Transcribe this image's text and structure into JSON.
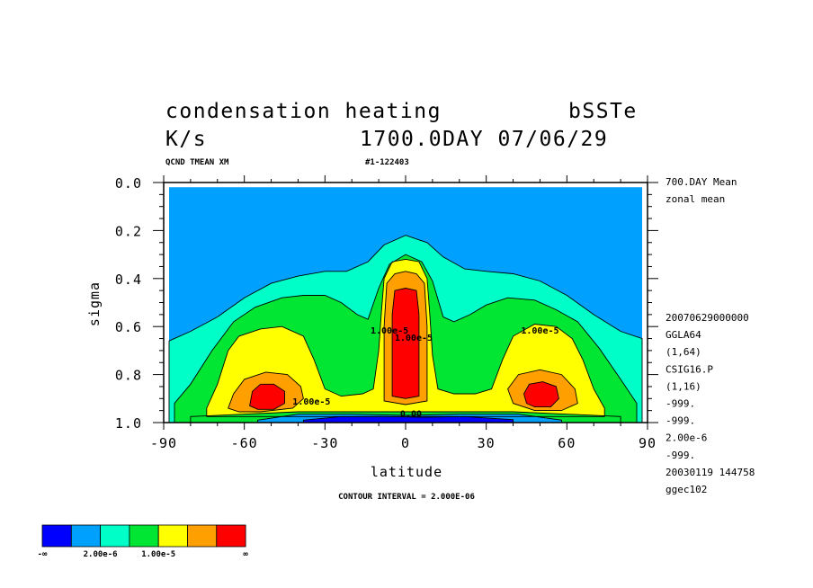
{
  "header": {
    "title_left": "condensation heating",
    "title_right": "bSSTe",
    "units": "K/s",
    "datestamp": "1700.0DAY 07/06/29",
    "varname": "QCND TMEAN XM",
    "run_id": "#1-122403"
  },
  "side_info": {
    "mean_label": "700.DAY Mean",
    "zonal_label": "zonal mean",
    "lines": [
      "20070629000000",
      "GGLA64",
      "(1,64)",
      "CSIG16.P",
      "(1,16)",
      "-999.",
      "-999.",
      "2.00e-6",
      "-999.",
      "20030119 144758",
      "ggec102"
    ]
  },
  "contour_interval": "CONTOUR INTERVAL = 2.000E-06",
  "colorbar": {
    "colors": [
      "#0000ff",
      "#00a0ff",
      "#00ffc8",
      "#00e632",
      "#ffff00",
      "#ffa000",
      "#ff0000"
    ],
    "labels": [
      "-∞",
      "2.00e-6",
      "1.00e-5",
      "∞"
    ]
  },
  "chart_data": {
    "type": "contour",
    "xlabel": "latitude",
    "ylabel": "sigma",
    "xlim": [
      -90,
      90
    ],
    "ylim": [
      0.0,
      1.0
    ],
    "y_inverted": true,
    "xticks": [
      -90,
      -60,
      -30,
      0,
      30,
      60,
      90
    ],
    "xtick_labels": [
      "-90",
      "-60",
      "-30",
      "0",
      "30",
      "60",
      "90"
    ],
    "yticks": [
      0.0,
      0.2,
      0.4,
      0.6,
      0.8,
      1.0
    ],
    "ytick_labels": [
      "0.0",
      "0.2",
      "0.4",
      "0.6",
      "0.8",
      "1.0"
    ],
    "contour_labels": [
      {
        "text": "1.00e-5",
        "x": -6,
        "y": 0.63
      },
      {
        "text": "1.00e-5",
        "x": 3,
        "y": 0.66
      },
      {
        "text": "1.00e-5",
        "x": 50,
        "y": 0.63
      },
      {
        "text": "1.00e-5",
        "x": -35,
        "y": 0.925
      },
      {
        "text": "0.00",
        "x": 2,
        "y": 0.975
      }
    ],
    "levels": [
      {
        "bin": 1,
        "color": "#00a0ff",
        "outline": [
          [
            -88,
            0.02
          ],
          [
            88,
            0.02
          ],
          [
            88,
            1.0
          ],
          [
            -88,
            1.0
          ]
        ]
      },
      {
        "bin": 2,
        "color": "#00ffc8",
        "outline": [
          [
            -88,
            0.66
          ],
          [
            -80,
            0.62
          ],
          [
            -70,
            0.56
          ],
          [
            -60,
            0.48
          ],
          [
            -50,
            0.42
          ],
          [
            -40,
            0.39
          ],
          [
            -30,
            0.37
          ],
          [
            -22,
            0.37
          ],
          [
            -14,
            0.33
          ],
          [
            -8,
            0.26
          ],
          [
            0,
            0.22
          ],
          [
            8,
            0.25
          ],
          [
            14,
            0.31
          ],
          [
            22,
            0.36
          ],
          [
            30,
            0.37
          ],
          [
            40,
            0.38
          ],
          [
            50,
            0.41
          ],
          [
            60,
            0.47
          ],
          [
            70,
            0.55
          ],
          [
            80,
            0.62
          ],
          [
            88,
            0.65
          ],
          [
            88,
            1.0
          ],
          [
            -88,
            1.0
          ]
        ]
      },
      {
        "bin": 3,
        "color": "#00e632",
        "outline": [
          [
            -86,
            0.92
          ],
          [
            -80,
            0.84
          ],
          [
            -72,
            0.7
          ],
          [
            -64,
            0.58
          ],
          [
            -56,
            0.52
          ],
          [
            -46,
            0.48
          ],
          [
            -38,
            0.47
          ],
          [
            -30,
            0.47
          ],
          [
            -24,
            0.5
          ],
          [
            -18,
            0.55
          ],
          [
            -14,
            0.57
          ],
          [
            -10,
            0.44
          ],
          [
            -6,
            0.34
          ],
          [
            0,
            0.3
          ],
          [
            6,
            0.33
          ],
          [
            10,
            0.41
          ],
          [
            14,
            0.56
          ],
          [
            18,
            0.58
          ],
          [
            24,
            0.55
          ],
          [
            30,
            0.51
          ],
          [
            38,
            0.48
          ],
          [
            48,
            0.49
          ],
          [
            56,
            0.53
          ],
          [
            64,
            0.58
          ],
          [
            72,
            0.69
          ],
          [
            80,
            0.82
          ],
          [
            86,
            0.92
          ],
          [
            86,
            1.0
          ],
          [
            -86,
            1.0
          ]
        ]
      },
      {
        "bin": 4,
        "color": "#ffff00",
        "outline": [
          [
            -74,
            0.94
          ],
          [
            -70,
            0.84
          ],
          [
            -66,
            0.7
          ],
          [
            -62,
            0.64
          ],
          [
            -54,
            0.61
          ],
          [
            -46,
            0.6
          ],
          [
            -38,
            0.64
          ],
          [
            -34,
            0.74
          ],
          [
            -30,
            0.86
          ],
          [
            -24,
            0.89
          ],
          [
            -16,
            0.88
          ],
          [
            -12,
            0.86
          ],
          [
            -10,
            0.7
          ],
          [
            -9,
            0.54
          ],
          [
            -8,
            0.4
          ],
          [
            -5,
            0.33
          ],
          [
            0,
            0.32
          ],
          [
            5,
            0.33
          ],
          [
            8,
            0.4
          ],
          [
            9,
            0.55
          ],
          [
            10,
            0.72
          ],
          [
            12,
            0.86
          ],
          [
            18,
            0.88
          ],
          [
            26,
            0.88
          ],
          [
            32,
            0.86
          ],
          [
            36,
            0.74
          ],
          [
            40,
            0.64
          ],
          [
            48,
            0.59
          ],
          [
            56,
            0.6
          ],
          [
            62,
            0.65
          ],
          [
            66,
            0.74
          ],
          [
            70,
            0.86
          ],
          [
            74,
            0.94
          ],
          [
            74,
            0.975
          ],
          [
            -74,
            0.975
          ]
        ]
      },
      {
        "bin": 5,
        "color": "#ffa000",
        "outline": [
          [
            -66,
            0.94
          ],
          [
            -64,
            0.88
          ],
          [
            -60,
            0.82
          ],
          [
            -52,
            0.79
          ],
          [
            -44,
            0.8
          ],
          [
            -39,
            0.85
          ],
          [
            -38,
            0.9
          ],
          [
            -42,
            0.94
          ],
          [
            -54,
            0.955
          ],
          [
            -62,
            0.955
          ]
        ]
      },
      {
        "bin": 5,
        "color": "#ffa000",
        "outline": [
          [
            -8,
            0.91
          ],
          [
            -8,
            0.6
          ],
          [
            -7,
            0.42
          ],
          [
            -4,
            0.38
          ],
          [
            0,
            0.37
          ],
          [
            4,
            0.38
          ],
          [
            7,
            0.42
          ],
          [
            8,
            0.6
          ],
          [
            8,
            0.91
          ],
          [
            0,
            0.925
          ]
        ]
      },
      {
        "bin": 5,
        "color": "#ffa000",
        "outline": [
          [
            38,
            0.86
          ],
          [
            42,
            0.8
          ],
          [
            50,
            0.78
          ],
          [
            58,
            0.8
          ],
          [
            63,
            0.86
          ],
          [
            64,
            0.92
          ],
          [
            58,
            0.95
          ],
          [
            48,
            0.95
          ],
          [
            40,
            0.92
          ]
        ]
      },
      {
        "bin": 6,
        "color": "#ff0000",
        "outline": [
          [
            -58,
            0.93
          ],
          [
            -57,
            0.87
          ],
          [
            -54,
            0.84
          ],
          [
            -49,
            0.84
          ],
          [
            -45,
            0.87
          ],
          [
            -45,
            0.92
          ],
          [
            -49,
            0.945
          ],
          [
            -55,
            0.945
          ]
        ]
      },
      {
        "bin": 6,
        "color": "#ff0000",
        "outline": [
          [
            -5,
            0.89
          ],
          [
            -5,
            0.55
          ],
          [
            -4,
            0.45
          ],
          [
            0,
            0.44
          ],
          [
            4,
            0.45
          ],
          [
            5,
            0.55
          ],
          [
            5,
            0.89
          ],
          [
            0,
            0.9
          ]
        ]
      },
      {
        "bin": 6,
        "color": "#ff0000",
        "outline": [
          [
            44,
            0.88
          ],
          [
            46,
            0.84
          ],
          [
            51,
            0.83
          ],
          [
            56,
            0.85
          ],
          [
            57,
            0.9
          ],
          [
            54,
            0.935
          ],
          [
            48,
            0.935
          ],
          [
            45,
            0.92
          ]
        ]
      },
      {
        "bin": 3,
        "color": "#00e632",
        "outline": [
          [
            -80,
            0.975
          ],
          [
            -40,
            0.955
          ],
          [
            0,
            0.955
          ],
          [
            40,
            0.955
          ],
          [
            80,
            0.975
          ],
          [
            80,
            1.0
          ],
          [
            -80,
            1.0
          ]
        ]
      },
      {
        "bin": 1,
        "color": "#00a0ff",
        "outline": [
          [
            -55,
            0.99
          ],
          [
            -40,
            0.965
          ],
          [
            -20,
            0.965
          ],
          [
            0,
            0.97
          ],
          [
            20,
            0.965
          ],
          [
            42,
            0.965
          ],
          [
            58,
            0.99
          ],
          [
            58,
            1.0
          ],
          [
            -55,
            1.0
          ]
        ]
      },
      {
        "bin": 0,
        "color": "#0000ff",
        "outline": [
          [
            -38,
            0.99
          ],
          [
            -24,
            0.975
          ],
          [
            -8,
            0.975
          ],
          [
            6,
            0.978
          ],
          [
            22,
            0.975
          ],
          [
            40,
            0.988
          ],
          [
            40,
            1.0
          ],
          [
            -38,
            1.0
          ]
        ]
      }
    ]
  }
}
